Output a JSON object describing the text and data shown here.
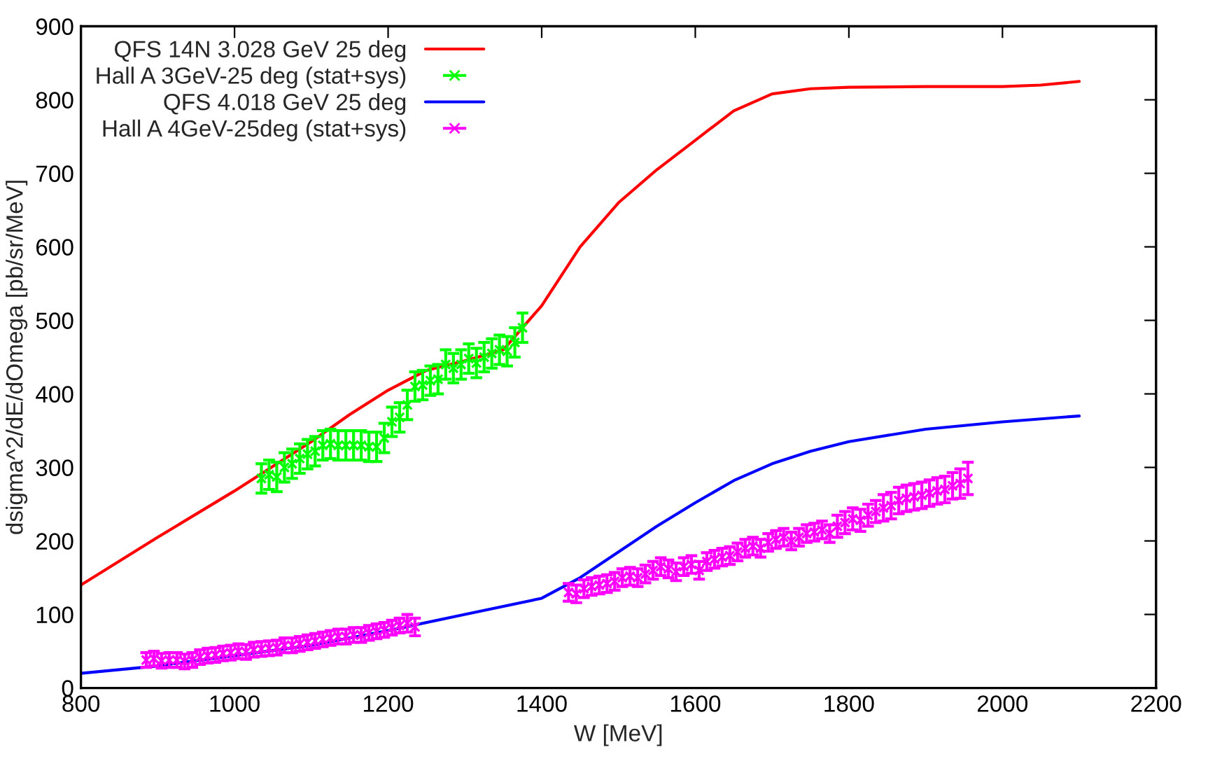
{
  "chart_data": {
    "type": "line",
    "xlabel": "W [MeV]",
    "ylabel": "dsigma^2/dE/dOmega [pb/sr/MeV]",
    "xlim": [
      800,
      2200
    ],
    "xticks": [
      800,
      1000,
      1200,
      1400,
      1600,
      1800,
      2000,
      2200
    ],
    "ylim": [
      0,
      900
    ],
    "yticks": [
      0,
      100,
      200,
      300,
      400,
      500,
      600,
      700,
      800,
      900
    ],
    "grid": false,
    "legend": "top left",
    "series": [
      {
        "name": "QFS 14N 3.028 GeV 25 deg",
        "color": "#ff0000",
        "x": [
          800,
          900,
          1000,
          1100,
          1150,
          1200,
          1250,
          1300,
          1350,
          1400,
          1450,
          1500,
          1550,
          1600,
          1650,
          1700,
          1750,
          1800,
          1900,
          2000,
          2050,
          2100
        ],
        "values": [
          140,
          205,
          268,
          335,
          372,
          405,
          432,
          445,
          460,
          520,
          600,
          660,
          705,
          745,
          785,
          808,
          815,
          817,
          818,
          818,
          820,
          825
        ]
      },
      {
        "name": "Hall A 3GeV-25 deg (stat+sys)",
        "type": "scatter",
        "marker": "cross",
        "color": "#00ff00",
        "x": [
          1035,
          1045,
          1055,
          1065,
          1075,
          1085,
          1095,
          1105,
          1115,
          1125,
          1135,
          1145,
          1155,
          1165,
          1175,
          1185,
          1195,
          1205,
          1215,
          1225,
          1235,
          1245,
          1255,
          1265,
          1275,
          1285,
          1295,
          1305,
          1315,
          1325,
          1335,
          1345,
          1355,
          1365,
          1375
        ],
        "values": [
          285,
          290,
          287,
          300,
          305,
          312,
          318,
          322,
          330,
          332,
          330,
          330,
          330,
          330,
          328,
          328,
          340,
          362,
          368,
          385,
          410,
          412,
          418,
          420,
          440,
          435,
          440,
          448,
          442,
          450,
          455,
          460,
          458,
          470,
          490
        ],
        "errors": [
          20,
          20,
          20,
          20,
          20,
          20,
          20,
          20,
          20,
          20,
          20,
          20,
          20,
          20,
          20,
          20,
          20,
          20,
          20,
          20,
          20,
          20,
          20,
          20,
          20,
          20,
          20,
          20,
          20,
          20,
          20,
          20,
          20,
          20,
          20
        ]
      },
      {
        "name": "QFS 4.018 GeV 25 deg",
        "color": "#0000ff",
        "x": [
          800,
          900,
          1000,
          1100,
          1200,
          1300,
          1400,
          1450,
          1500,
          1550,
          1600,
          1650,
          1700,
          1750,
          1800,
          1900,
          2000,
          2100
        ],
        "values": [
          20,
          30,
          44,
          58,
          78,
          100,
          122,
          150,
          185,
          220,
          252,
          282,
          305,
          322,
          335,
          352,
          362,
          370
        ]
      },
      {
        "name": "Hall A 4GeV-25deg (stat+sys)",
        "type": "scatter",
        "marker": "cross",
        "color": "#ff00ff",
        "x": [
          885,
          895,
          905,
          915,
          925,
          935,
          945,
          955,
          965,
          975,
          985,
          995,
          1005,
          1015,
          1025,
          1035,
          1045,
          1055,
          1065,
          1075,
          1085,
          1095,
          1105,
          1115,
          1125,
          1135,
          1145,
          1155,
          1165,
          1175,
          1185,
          1195,
          1205,
          1215,
          1225,
          1235,
          1435,
          1445,
          1455,
          1465,
          1475,
          1485,
          1495,
          1505,
          1515,
          1525,
          1535,
          1545,
          1555,
          1565,
          1575,
          1585,
          1595,
          1605,
          1615,
          1625,
          1635,
          1645,
          1655,
          1665,
          1675,
          1685,
          1695,
          1705,
          1715,
          1725,
          1735,
          1745,
          1755,
          1765,
          1775,
          1785,
          1795,
          1805,
          1815,
          1825,
          1835,
          1845,
          1855,
          1865,
          1875,
          1885,
          1895,
          1905,
          1915,
          1925,
          1935,
          1945,
          1955
        ],
        "values": [
          38,
          40,
          37,
          38,
          38,
          36,
          38,
          42,
          44,
          45,
          47,
          48,
          50,
          49,
          52,
          53,
          54,
          55,
          58,
          58,
          60,
          62,
          64,
          66,
          68,
          70,
          70,
          72,
          72,
          75,
          77,
          79,
          82,
          85,
          88,
          83,
          130,
          128,
          135,
          138,
          140,
          142,
          145,
          150,
          152,
          150,
          155,
          160,
          165,
          162,
          158,
          165,
          168,
          160,
          172,
          175,
          178,
          180,
          185,
          190,
          193,
          190,
          198,
          202,
          205,
          200,
          205,
          210,
          212,
          215,
          210,
          220,
          225,
          230,
          228,
          235,
          240,
          245,
          248,
          255,
          258,
          260,
          262,
          265,
          268,
          270,
          275,
          278,
          285
        ],
        "errors": [
          10,
          10,
          10,
          10,
          10,
          10,
          10,
          10,
          10,
          10,
          10,
          10,
          10,
          10,
          10,
          10,
          10,
          10,
          10,
          10,
          10,
          10,
          10,
          10,
          10,
          10,
          10,
          10,
          10,
          10,
          10,
          10,
          10,
          10,
          12,
          12,
          12,
          12,
          12,
          12,
          12,
          12,
          12,
          12,
          12,
          12,
          12,
          12,
          12,
          12,
          12,
          12,
          12,
          12,
          12,
          12,
          12,
          12,
          12,
          12,
          12,
          12,
          12,
          12,
          12,
          12,
          12,
          12,
          12,
          12,
          12,
          15,
          15,
          15,
          15,
          15,
          15,
          18,
          18,
          18,
          18,
          18,
          18,
          18,
          18,
          18,
          18,
          20,
          22
        ]
      }
    ]
  }
}
